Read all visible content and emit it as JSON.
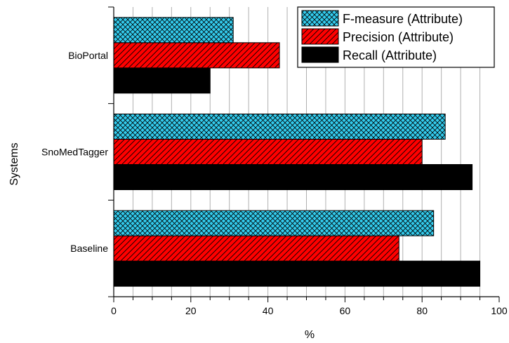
{
  "chart_data": {
    "type": "bar",
    "orientation": "horizontal",
    "categories": [
      "Baseline",
      "SnoMedTagger",
      "BioPortal"
    ],
    "series": [
      {
        "name": "Recall (Attribute)",
        "values": [
          95,
          93,
          25
        ],
        "color": "#000000",
        "pattern": "solid"
      },
      {
        "name": "Precision (Attribute)",
        "values": [
          74,
          80,
          43
        ],
        "color": "#ff0000",
        "pattern": "diagonal-hatch"
      },
      {
        "name": "F-measure (Attribute)",
        "values": [
          83,
          86,
          31
        ],
        "color": "#33ccee",
        "pattern": "cross-hatch"
      }
    ],
    "xlabel": "%",
    "ylabel": "Systems",
    "xlim": [
      0,
      100
    ],
    "xticks": [
      "0",
      "20",
      "40",
      "60",
      "80",
      "100"
    ],
    "grid": "vertical minor lines",
    "legend_position": "top-right",
    "legend_order": [
      "F-measure (Attribute)",
      "Precision (Attribute)",
      "Recall (Attribute)"
    ]
  }
}
